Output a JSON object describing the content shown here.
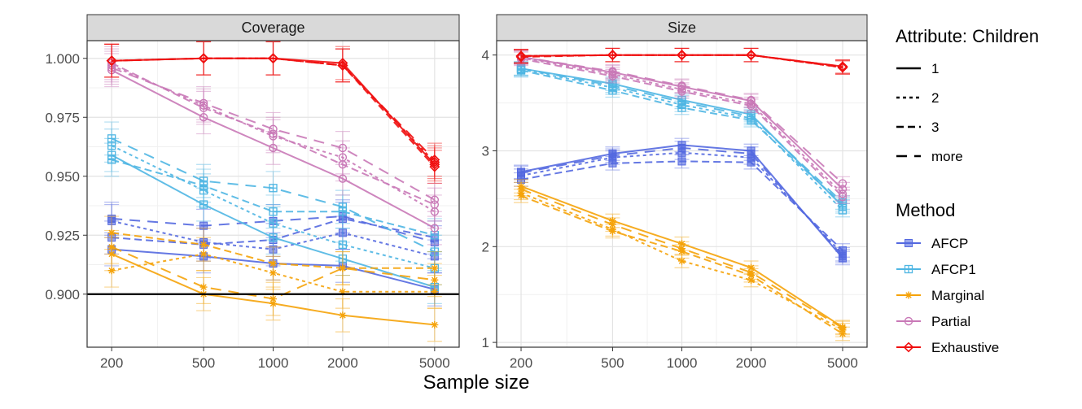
{
  "chart_data": {
    "type": "line",
    "xlabel": "Sample size",
    "x_scale": "log",
    "x": [
      200,
      500,
      1000,
      2000,
      5000
    ],
    "x_tick_labels": [
      "200",
      "500",
      "1000",
      "2000",
      "5000"
    ],
    "legend": {
      "linetype_title": "Attribute: Children",
      "linetypes": [
        "1",
        "2",
        "3",
        "more"
      ],
      "method_title": "Method",
      "methods": [
        "AFCP",
        "AFCP1",
        "Marginal",
        "Partial",
        "Exhaustive"
      ]
    },
    "colors": {
      "AFCP": "#5469e0",
      "AFCP1": "#4fb6e3",
      "Marginal": "#f5a30a",
      "Partial": "#c979b7",
      "Exhaustive": "#f01010"
    },
    "markers": {
      "AFCP": "filled-square",
      "AFCP1": "boxed-plus",
      "Marginal": "asterisk",
      "Partial": "open-circle",
      "Exhaustive": "open-diamond"
    },
    "panels": [
      {
        "title": "Coverage",
        "ylim": [
          0.8775,
          1.0075
        ],
        "y_ticks": [
          0.9,
          0.925,
          0.95,
          0.975,
          1.0
        ],
        "y_tick_labels": [
          "0.900",
          "0.925",
          "0.950",
          "0.975",
          "1.000"
        ],
        "reference_line": 0.9,
        "error": 0.007,
        "series": [
          {
            "method": "AFCP",
            "children": "1",
            "values": [
              0.919,
              0.916,
              0.913,
              0.912,
              0.902
            ]
          },
          {
            "method": "AFCP",
            "children": "2",
            "values": [
              0.931,
              0.922,
              0.919,
              0.926,
              0.916
            ]
          },
          {
            "method": "AFCP",
            "children": "3",
            "values": [
              0.924,
              0.921,
              0.923,
              0.932,
              0.924
            ]
          },
          {
            "method": "AFCP",
            "children": "more",
            "values": [
              0.932,
              0.929,
              0.931,
              0.933,
              0.922
            ]
          },
          {
            "method": "AFCP1",
            "children": "1",
            "values": [
              0.959,
              0.938,
              0.924,
              0.915,
              0.903
            ]
          },
          {
            "method": "AFCP1",
            "children": "2",
            "values": [
              0.963,
              0.944,
              0.93,
              0.921,
              0.911
            ]
          },
          {
            "method": "AFCP1",
            "children": "3",
            "values": [
              0.957,
              0.946,
              0.935,
              0.935,
              0.925
            ]
          },
          {
            "method": "AFCP1",
            "children": "more",
            "values": [
              0.966,
              0.948,
              0.945,
              0.937,
              0.918
            ]
          },
          {
            "method": "Marginal",
            "children": "1",
            "values": [
              0.917,
              0.9,
              0.896,
              0.891,
              0.887
            ]
          },
          {
            "method": "Marginal",
            "children": "2",
            "values": [
              0.91,
              0.917,
              0.909,
              0.901,
              0.901
            ]
          },
          {
            "method": "Marginal",
            "children": "3",
            "values": [
              0.926,
              0.921,
              0.913,
              0.911,
              0.911
            ]
          },
          {
            "method": "Marginal",
            "children": "more",
            "values": [
              0.92,
              0.903,
              0.898,
              0.911,
              0.906
            ]
          },
          {
            "method": "Partial",
            "children": "1",
            "values": [
              0.995,
              0.975,
              0.962,
              0.949,
              0.928
            ]
          },
          {
            "method": "Partial",
            "children": "2",
            "values": [
              0.997,
              0.98,
              0.967,
              0.958,
              0.935
            ]
          },
          {
            "method": "Partial",
            "children": "3",
            "values": [
              0.998,
              0.979,
              0.968,
              0.955,
              0.938
            ]
          },
          {
            "method": "Partial",
            "children": "more",
            "values": [
              0.996,
              0.981,
              0.97,
              0.962,
              0.94
            ]
          },
          {
            "method": "Exhaustive",
            "children": "1",
            "values": [
              0.999,
              1.0,
              1.0,
              0.998,
              0.955
            ]
          },
          {
            "method": "Exhaustive",
            "children": "2",
            "values": [
              0.999,
              1.0,
              1.0,
              0.997,
              0.956
            ]
          },
          {
            "method": "Exhaustive",
            "children": "3",
            "values": [
              0.999,
              1.0,
              1.0,
              0.997,
              0.954
            ]
          },
          {
            "method": "Exhaustive",
            "children": "more",
            "values": [
              0.999,
              1.0,
              1.0,
              0.997,
              0.957
            ]
          }
        ]
      },
      {
        "title": "Size",
        "ylim": [
          0.95,
          4.15
        ],
        "y_ticks": [
          1,
          2,
          3,
          4
        ],
        "y_tick_labels": [
          "1",
          "2",
          "3",
          "4"
        ],
        "error": 0.07,
        "series": [
          {
            "method": "AFCP",
            "children": "1",
            "values": [
              2.78,
              2.97,
              3.06,
              3.0,
              1.88
            ]
          },
          {
            "method": "AFCP",
            "children": "2",
            "values": [
              2.74,
              2.93,
              2.98,
              2.93,
              1.92
            ]
          },
          {
            "method": "AFCP",
            "children": "3",
            "values": [
              2.7,
              2.87,
              2.89,
              2.88,
              1.96
            ]
          },
          {
            "method": "AFCP",
            "children": "more",
            "values": [
              2.77,
              2.95,
              3.03,
              2.97,
              1.9
            ]
          },
          {
            "method": "AFCP1",
            "children": "1",
            "values": [
              3.86,
              3.7,
              3.53,
              3.38,
              2.42
            ]
          },
          {
            "method": "AFCP1",
            "children": "2",
            "values": [
              3.85,
              3.66,
              3.48,
              3.34,
              2.38
            ]
          },
          {
            "method": "AFCP1",
            "children": "3",
            "values": [
              3.84,
              3.63,
              3.45,
              3.32,
              2.44
            ]
          },
          {
            "method": "AFCP1",
            "children": "more",
            "values": [
              3.86,
              3.68,
              3.51,
              3.36,
              2.46
            ]
          },
          {
            "method": "Marginal",
            "children": "1",
            "values": [
              2.63,
              2.27,
              2.03,
              1.78,
              1.16
            ]
          },
          {
            "method": "Marginal",
            "children": "2",
            "values": [
              2.56,
              2.18,
              1.85,
              1.65,
              1.13
            ]
          },
          {
            "method": "Marginal",
            "children": "3",
            "values": [
              2.53,
              2.16,
              1.95,
              1.7,
              1.09
            ]
          },
          {
            "method": "Marginal",
            "children": "more",
            "values": [
              2.6,
              2.23,
              1.98,
              1.73,
              1.15
            ]
          },
          {
            "method": "Partial",
            "children": "1",
            "values": [
              3.98,
              3.82,
              3.67,
              3.52,
              2.6
            ]
          },
          {
            "method": "Partial",
            "children": "2",
            "values": [
              3.97,
              3.8,
              3.64,
              3.49,
              2.55
            ]
          },
          {
            "method": "Partial",
            "children": "3",
            "values": [
              3.96,
              3.78,
              3.62,
              3.47,
              2.52
            ]
          },
          {
            "method": "Partial",
            "children": "more",
            "values": [
              3.98,
              3.83,
              3.68,
              3.53,
              2.66
            ]
          },
          {
            "method": "Exhaustive",
            "children": "1",
            "values": [
              3.99,
              4.0,
              4.0,
              4.0,
              3.88
            ]
          },
          {
            "method": "Exhaustive",
            "children": "2",
            "values": [
              3.99,
              4.0,
              4.0,
              4.0,
              3.87
            ]
          },
          {
            "method": "Exhaustive",
            "children": "3",
            "values": [
              3.98,
              4.0,
              4.0,
              4.0,
              3.87
            ]
          },
          {
            "method": "Exhaustive",
            "children": "more",
            "values": [
              3.99,
              4.0,
              4.0,
              4.0,
              3.88
            ]
          }
        ]
      }
    ]
  }
}
